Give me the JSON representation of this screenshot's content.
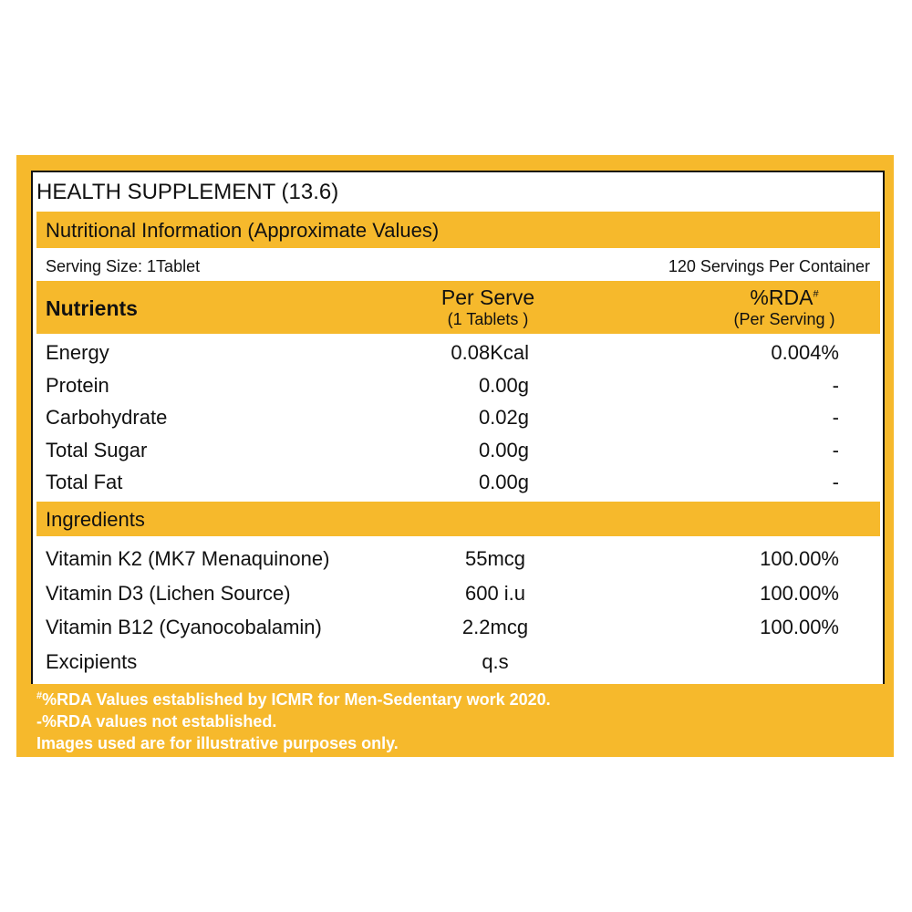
{
  "title": "HEALTH SUPPLEMENT (13.6)",
  "section_title": "Nutritional Information (Approximate Values)",
  "serving_size": "Serving Size: 1Tablet",
  "servings_per_container": "120 Servings Per Container",
  "table": {
    "headers": [
      {
        "text": "Nutrients"
      },
      {
        "text": "Per Serve",
        "sub": "(1 Tablets )"
      },
      {
        "text": "%RDA",
        "sup": "#",
        "sub": "(Per Serving )"
      }
    ],
    "rows": [
      [
        "Energy",
        "0.08Kcal",
        "0.004%"
      ],
      [
        "Protein",
        "0.00g",
        "-"
      ],
      [
        "Carbohydrate",
        "0.02g",
        "-"
      ],
      [
        "Total Sugar",
        "0.00g",
        "-"
      ],
      [
        "Total Fat",
        "0.00g",
        "-"
      ]
    ]
  },
  "ingredients": {
    "title": "Ingredients",
    "rows": [
      [
        "Vitamin K2 (MK7 Menaquinone)",
        "55mcg",
        "100.00%"
      ],
      [
        "Vitamin D3 (Lichen Source)",
        "600 i.u",
        "100.00%"
      ],
      [
        "Vitamin B12 (Cyanocobalamin)",
        "2.2mcg",
        "100.00%"
      ],
      [
        "Excipients",
        "q.s",
        ""
      ]
    ]
  },
  "footnotes": [
    {
      "marker": "#",
      "text": "%RDA Values established by ICMR  for Men-Sedentary work 2020."
    },
    {
      "text": "-%RDA values not established."
    },
    {
      "text": "Images used are for illustrative purposes only."
    }
  ]
}
